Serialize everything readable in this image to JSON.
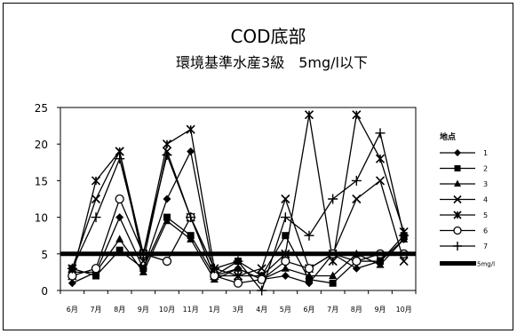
{
  "chart_data": {
    "type": "line",
    "title": "COD底部",
    "subtitle": "環境基準水産3級　5mg/l以下",
    "categories": [
      "6月",
      "7月",
      "8月",
      "9月",
      "10月",
      "11月",
      "1月",
      "3月",
      "4月",
      "5月",
      "6月",
      "7月",
      "8月",
      "9月",
      "10月"
    ],
    "ylim": [
      0,
      25
    ],
    "yticks": [
      "0",
      "5",
      "10",
      "15",
      "20",
      "25"
    ],
    "yticks_values": [
      0,
      5,
      10,
      15,
      20,
      25
    ],
    "legend_title": "地点",
    "legend_position": "right",
    "series": [
      {
        "name": "1",
        "marker": "diamond",
        "values": [
          1,
          2.5,
          10,
          3,
          12.5,
          19,
          2,
          3,
          1.5,
          2,
          1,
          5,
          3,
          4,
          7
        ]
      },
      {
        "name": "2",
        "marker": "square",
        "values": [
          3,
          2,
          5.5,
          3,
          10,
          7.5,
          2,
          4,
          2,
          7.5,
          1.5,
          1,
          4,
          4,
          7.5
        ]
      },
      {
        "name": "3",
        "marker": "triangle",
        "values": [
          2.5,
          2.5,
          7,
          2.5,
          9.5,
          7,
          1.5,
          3,
          1.5,
          3,
          2,
          2,
          5,
          3.5,
          7
        ]
      },
      {
        "name": "4",
        "marker": "x",
        "values": [
          3,
          12.5,
          19,
          4,
          19,
          10,
          2,
          2,
          3,
          12.5,
          3,
          5,
          12.5,
          15,
          4
        ]
      },
      {
        "name": "5",
        "marker": "asterisk",
        "values": [
          2,
          15,
          19,
          5,
          20,
          22,
          3,
          2,
          2,
          5,
          24,
          4,
          24,
          18,
          8
        ]
      },
      {
        "name": "6",
        "marker": "circle",
        "values": [
          2,
          3,
          12.5,
          5,
          4,
          10,
          2,
          1,
          1.5,
          4,
          3,
          5,
          4,
          5,
          5
        ]
      },
      {
        "name": "7",
        "marker": "plus",
        "values": [
          3,
          10,
          18,
          5,
          18.5,
          10,
          3,
          4,
          0,
          10,
          7.5,
          12.5,
          15,
          21.5,
          7.5
        ]
      }
    ],
    "reference_line": {
      "name": "5mg/l",
      "value": 5
    },
    "grid": false
  }
}
